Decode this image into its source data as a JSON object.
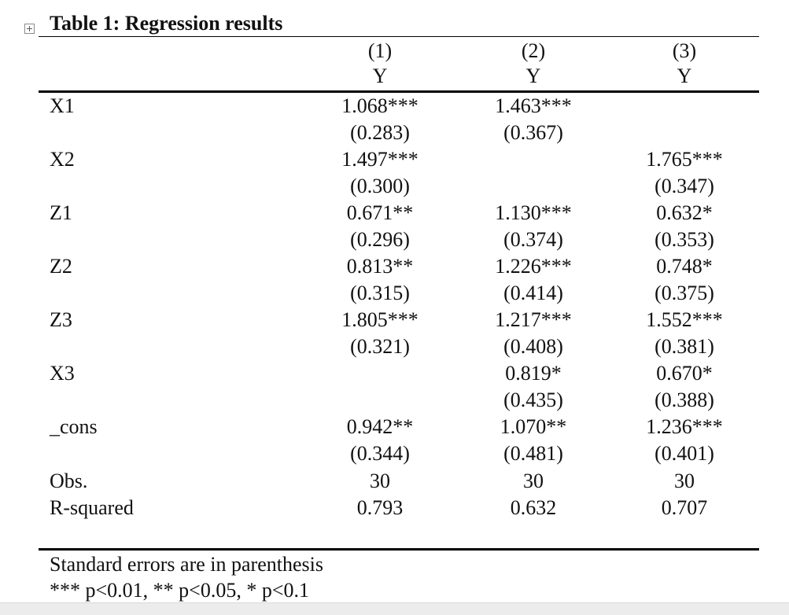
{
  "table": {
    "caption": "Table 1: Regression results",
    "header": {
      "numbers": [
        "(1)",
        "(2)",
        "(3)"
      ],
      "depvars": [
        "Y",
        "Y",
        "Y"
      ]
    },
    "rows": [
      {
        "label": "X1",
        "coef": [
          "1.068***",
          "1.463***",
          ""
        ],
        "se": [
          "(0.283)",
          "(0.367)",
          ""
        ]
      },
      {
        "label": "X2",
        "coef": [
          "1.497***",
          "",
          "1.765***"
        ],
        "se": [
          "(0.300)",
          "",
          "(0.347)"
        ]
      },
      {
        "label": "Z1",
        "coef": [
          "0.671**",
          "1.130***",
          "0.632*"
        ],
        "se": [
          "(0.296)",
          "(0.374)",
          "(0.353)"
        ]
      },
      {
        "label": "Z2",
        "coef": [
          "0.813**",
          "1.226***",
          "0.748*"
        ],
        "se": [
          "(0.315)",
          "(0.414)",
          "(0.375)"
        ]
      },
      {
        "label": "Z3",
        "coef": [
          "1.805***",
          "1.217***",
          "1.552***"
        ],
        "se": [
          "(0.321)",
          "(0.408)",
          "(0.381)"
        ]
      },
      {
        "label": "X3",
        "coef": [
          "",
          "0.819*",
          "0.670*"
        ],
        "se": [
          "",
          "(0.435)",
          "(0.388)"
        ]
      },
      {
        "label": "_cons",
        "coef": [
          "0.942**",
          "1.070**",
          "1.236***"
        ],
        "se": [
          "(0.344)",
          "(0.481)",
          "(0.401)"
        ]
      }
    ],
    "stats": [
      {
        "label": "Obs.",
        "values": [
          "30",
          "30",
          "30"
        ]
      },
      {
        "label": "R-squared",
        "values": [
          "0.793",
          "0.632",
          "0.707"
        ]
      }
    ],
    "notes": [
      "Standard errors are in parenthesis",
      "*** p<0.01, ** p<0.05, * p<0.1"
    ]
  },
  "icons": {
    "table_handle": "table-move-handle-icon"
  }
}
